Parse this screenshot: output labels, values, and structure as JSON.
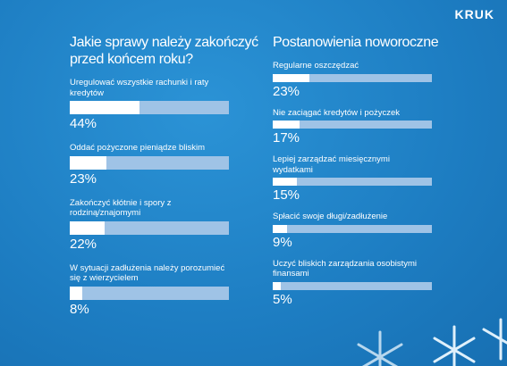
{
  "logo": "KRUK",
  "chart_data": [
    {
      "type": "bar",
      "orientation": "horizontal",
      "title": "Jakie sprawy należy zakończyć przed końcem roku?",
      "categories": [
        "Uregulować wszystkie rachunki i raty kredytów",
        "Oddać pożyczone pieniądze bliskim",
        "Zakończyć kłótnie i spory z rodziną/znajomymi",
        "W sytuacji zadłużenia należy porozumieć się z wierzycielem"
      ],
      "values": [
        44,
        23,
        22,
        8
      ],
      "value_labels": [
        "44%",
        "23%",
        "22%",
        "8%"
      ],
      "xlim": [
        0,
        100
      ],
      "color": "#ffffff",
      "track_color": "#9fc3e6"
    },
    {
      "type": "bar",
      "orientation": "horizontal",
      "title": "Postanowienia noworoczne",
      "categories": [
        "Regularne oszczędzać",
        "Nie zaciągać kredytów i pożyczek",
        "Lepiej zarządzać miesięcznymi wydatkami",
        "Spłacić swoje długi/zadłużenie",
        "Uczyć bliskich zarządzania osobistymi finansami"
      ],
      "values": [
        23,
        17,
        15,
        9,
        5
      ],
      "value_labels": [
        "23%",
        "17%",
        "15%",
        "9%",
        "5%"
      ],
      "xlim": [
        0,
        100
      ],
      "color": "#ffffff",
      "track_color": "#9fc3e6"
    }
  ]
}
